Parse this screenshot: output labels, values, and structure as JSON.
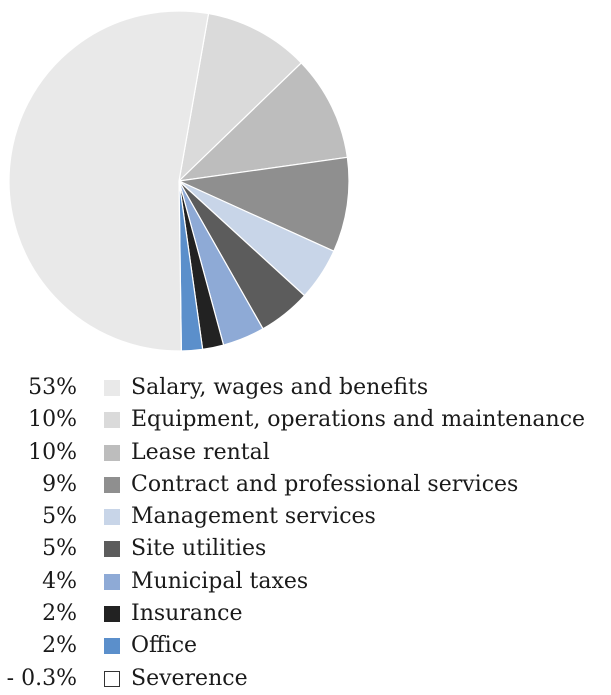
{
  "chart_data": {
    "type": "pie",
    "title": "",
    "slices": [
      {
        "label": "Salary, wages and benefits",
        "percent_label": "53%",
        "value": 53,
        "color": "#e9e9e9"
      },
      {
        "label": "Equipment, operations and maintenance",
        "percent_label": "10%",
        "value": 10,
        "color": "#dadada"
      },
      {
        "label": "Lease rental",
        "percent_label": "10%",
        "value": 10,
        "color": "#bdbdbd"
      },
      {
        "label": "Contract and professional services",
        "percent_label": "9%",
        "value": 9,
        "color": "#8f8f8f"
      },
      {
        "label": "Management services",
        "percent_label": "5%",
        "value": 5,
        "color": "#c8d5e8"
      },
      {
        "label": "Site utilities",
        "percent_label": "5%",
        "value": 5,
        "color": "#5c5c5c"
      },
      {
        "label": "Municipal taxes",
        "percent_label": "4%",
        "value": 4,
        "color": "#8eaad6"
      },
      {
        "label": "Insurance",
        "percent_label": "2%",
        "value": 2,
        "color": "#222222"
      },
      {
        "label": "Office",
        "percent_label": "2%",
        "value": 2,
        "color": "#5b8fcb"
      },
      {
        "label": "Severence",
        "percent_label": "- 0.3%",
        "value": -0.3,
        "color": "#ffffff"
      }
    ],
    "legend_position": "bottom"
  }
}
